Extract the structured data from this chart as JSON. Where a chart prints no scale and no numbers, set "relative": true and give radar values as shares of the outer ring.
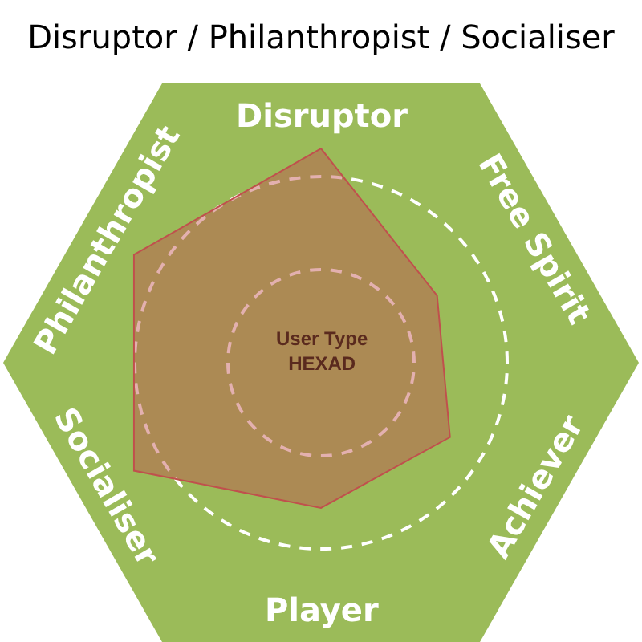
{
  "chart_data": {
    "type": "radar",
    "title": "Disruptor / Philanthropist / Socialiser",
    "categories": [
      "Disruptor",
      "Free Spirit",
      "Achiever",
      "Player",
      "Socialiser",
      "Philanthropist"
    ],
    "relative": true,
    "grid": true,
    "series": [
      {
        "color": "#c0504d",
        "values": [
          1.15,
          0.72,
          0.8,
          0.78,
          1.16,
          1.16
        ]
      }
    ],
    "annotations": [
      "User Type\nHEXAD"
    ]
  }
}
